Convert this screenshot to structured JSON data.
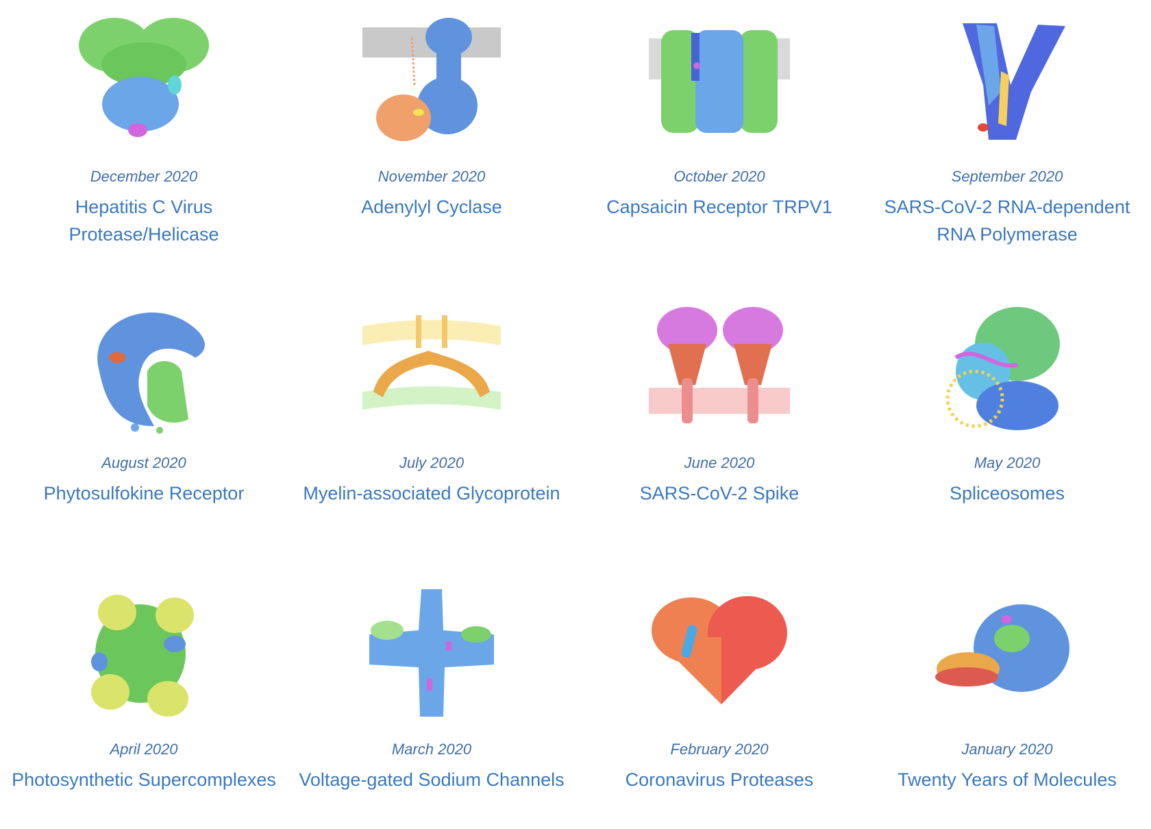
{
  "items": [
    {
      "date": "December 2020",
      "title": "Hepatitis C Virus Protease/Helicase",
      "icon": "hepatitis-c-protease-helicase-icon"
    },
    {
      "date": "November 2020",
      "title": "Adenylyl Cyclase",
      "icon": "adenylyl-cyclase-icon"
    },
    {
      "date": "October 2020",
      "title": "Capsaicin Receptor TRPV1",
      "icon": "capsaicin-receptor-trpv1-icon"
    },
    {
      "date": "September 2020",
      "title": "SARS-CoV-2 RNA-dependent RNA Polymerase",
      "icon": "sars-cov-2-rna-polymerase-icon"
    },
    {
      "date": "August 2020",
      "title": "Phytosulfokine Receptor",
      "icon": "phytosulfokine-receptor-icon"
    },
    {
      "date": "July 2020",
      "title": "Myelin-associated Glycoprotein",
      "icon": "myelin-associated-glycoprotein-icon"
    },
    {
      "date": "June 2020",
      "title": "SARS-CoV-2 Spike",
      "icon": "sars-cov-2-spike-icon"
    },
    {
      "date": "May 2020",
      "title": "Spliceosomes",
      "icon": "spliceosome-icon"
    },
    {
      "date": "April 2020",
      "title": "Photosynthetic Supercomplexes",
      "icon": "photosynthetic-supercomplex-icon"
    },
    {
      "date": "March 2020",
      "title": "Voltage-gated Sodium Channels",
      "icon": "voltage-gated-sodium-channel-icon"
    },
    {
      "date": "February 2020",
      "title": "Coronavirus Proteases",
      "icon": "coronavirus-protease-icon"
    },
    {
      "date": "January 2020",
      "title": "Twenty Years of Molecules",
      "icon": "twenty-years-molecules-icon"
    }
  ]
}
